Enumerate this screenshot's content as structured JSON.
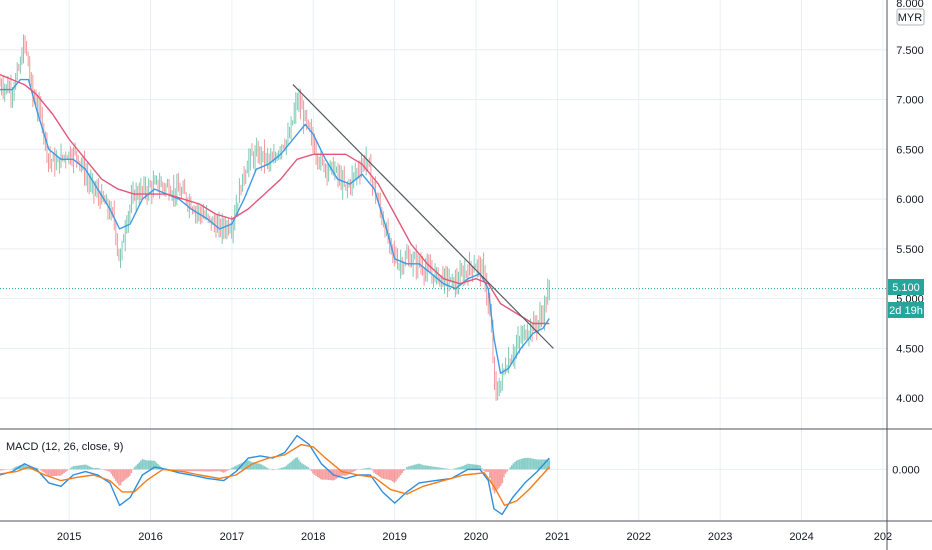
{
  "colors": {
    "grid": "#e9eef3",
    "border": "#50535e",
    "bar_up": "#7fc9b5",
    "bar_down": "#f09a9a",
    "ma_fast": "#3d9be8",
    "ma_slow": "#e2587a",
    "trendline": "#555861",
    "price_line": "#26a69a",
    "price_label_bg": "#26a69a",
    "price_label_text": "#ffffff",
    "macd_line": "#2f8ee0",
    "signal_line": "#f47c1a",
    "hist_up": "#26a69a",
    "hist_down": "#ef5350"
  },
  "price_axis": {
    "currency": "MYR",
    "top_label": "8.000",
    "current_price": "5.100",
    "countdown": "2d 19h"
  },
  "macd_panel": {
    "title": "MACD (12, 26, close, 9)"
  },
  "chart_data": [
    {
      "type": "line",
      "panel": "price",
      "title": "",
      "xlabel": "",
      "ylabel": "",
      "x_ticks": [
        "2015",
        "2016",
        "2017",
        "2018",
        "2019",
        "2020",
        "2021",
        "2022",
        "2023",
        "2024",
        "202"
      ],
      "y_ticks": [
        "4.000",
        "4.500",
        "5.000",
        "5.500",
        "6.000",
        "6.500",
        "7.000",
        "7.500"
      ],
      "ylim": [
        3.7,
        8.0
      ],
      "xlim": [
        2014.15,
        2025.05
      ],
      "grid": true,
      "last_price": 5.1,
      "price_path": [
        [
          2014.15,
          7.15
        ],
        [
          2014.3,
          7.1
        ],
        [
          2014.4,
          7.35
        ],
        [
          2014.45,
          7.6
        ],
        [
          2014.55,
          7.05
        ],
        [
          2014.65,
          6.85
        ],
        [
          2014.75,
          6.4
        ],
        [
          2014.85,
          6.35
        ],
        [
          2014.95,
          6.45
        ],
        [
          2015.1,
          6.45
        ],
        [
          2015.25,
          6.15
        ],
        [
          2015.4,
          6.0
        ],
        [
          2015.55,
          5.8
        ],
        [
          2015.62,
          5.35
        ],
        [
          2015.7,
          5.8
        ],
        [
          2015.8,
          6.05
        ],
        [
          2015.95,
          6.1
        ],
        [
          2016.1,
          6.15
        ],
        [
          2016.25,
          6.1
        ],
        [
          2016.4,
          6.05
        ],
        [
          2016.55,
          5.9
        ],
        [
          2016.7,
          5.8
        ],
        [
          2016.85,
          5.7
        ],
        [
          2017.0,
          5.75
        ],
        [
          2017.1,
          6.1
        ],
        [
          2017.2,
          6.4
        ],
        [
          2017.35,
          6.45
        ],
        [
          2017.5,
          6.35
        ],
        [
          2017.6,
          6.55
        ],
        [
          2017.7,
          6.6
        ],
        [
          2017.8,
          7.0
        ],
        [
          2017.9,
          6.8
        ],
        [
          2018.0,
          6.55
        ],
        [
          2018.1,
          6.35
        ],
        [
          2018.25,
          6.3
        ],
        [
          2018.4,
          6.1
        ],
        [
          2018.55,
          6.3
        ],
        [
          2018.65,
          6.4
        ],
        [
          2018.75,
          6.1
        ],
        [
          2018.85,
          5.8
        ],
        [
          2018.95,
          5.5
        ],
        [
          2019.05,
          5.35
        ],
        [
          2019.15,
          5.4
        ],
        [
          2019.3,
          5.35
        ],
        [
          2019.45,
          5.25
        ],
        [
          2019.6,
          5.2
        ],
        [
          2019.75,
          5.15
        ],
        [
          2019.9,
          5.3
        ],
        [
          2020.0,
          5.35
        ],
        [
          2020.1,
          5.25
        ],
        [
          2020.18,
          4.75
        ],
        [
          2020.24,
          4.0
        ],
        [
          2020.35,
          4.3
        ],
        [
          2020.45,
          4.45
        ],
        [
          2020.55,
          4.6
        ],
        [
          2020.65,
          4.7
        ],
        [
          2020.75,
          4.75
        ],
        [
          2020.82,
          4.85
        ],
        [
          2020.9,
          5.1
        ]
      ],
      "series": [
        {
          "role": "fast_ma",
          "points": [
            [
              2014.15,
              7.1
            ],
            [
              2014.3,
              7.1
            ],
            [
              2014.4,
              7.2
            ],
            [
              2014.5,
              7.2
            ],
            [
              2014.6,
              6.9
            ],
            [
              2014.75,
              6.5
            ],
            [
              2014.9,
              6.4
            ],
            [
              2015.05,
              6.4
            ],
            [
              2015.2,
              6.3
            ],
            [
              2015.35,
              6.1
            ],
            [
              2015.5,
              5.9
            ],
            [
              2015.62,
              5.7
            ],
            [
              2015.75,
              5.75
            ],
            [
              2015.9,
              6.0
            ],
            [
              2016.05,
              6.1
            ],
            [
              2016.2,
              6.05
            ],
            [
              2016.35,
              6.0
            ],
            [
              2016.5,
              5.9
            ],
            [
              2016.7,
              5.8
            ],
            [
              2016.85,
              5.7
            ],
            [
              2017.0,
              5.75
            ],
            [
              2017.15,
              6.0
            ],
            [
              2017.3,
              6.3
            ],
            [
              2017.45,
              6.35
            ],
            [
              2017.6,
              6.45
            ],
            [
              2017.75,
              6.6
            ],
            [
              2017.9,
              6.75
            ],
            [
              2018.0,
              6.65
            ],
            [
              2018.15,
              6.4
            ],
            [
              2018.3,
              6.2
            ],
            [
              2018.45,
              6.15
            ],
            [
              2018.6,
              6.25
            ],
            [
              2018.75,
              6.1
            ],
            [
              2018.9,
              5.7
            ],
            [
              2019.0,
              5.4
            ],
            [
              2019.15,
              5.35
            ],
            [
              2019.3,
              5.35
            ],
            [
              2019.45,
              5.25
            ],
            [
              2019.6,
              5.15
            ],
            [
              2019.75,
              5.1
            ],
            [
              2019.9,
              5.2
            ],
            [
              2020.05,
              5.25
            ],
            [
              2020.15,
              5.1
            ],
            [
              2020.22,
              4.6
            ],
            [
              2020.3,
              4.25
            ],
            [
              2020.4,
              4.3
            ],
            [
              2020.55,
              4.5
            ],
            [
              2020.7,
              4.65
            ],
            [
              2020.82,
              4.7
            ],
            [
              2020.9,
              4.8
            ]
          ]
        },
        {
          "role": "slow_ma",
          "points": [
            [
              2014.15,
              7.25
            ],
            [
              2014.3,
              7.2
            ],
            [
              2014.45,
              7.15
            ],
            [
              2014.6,
              7.05
            ],
            [
              2014.8,
              6.85
            ],
            [
              2015.0,
              6.6
            ],
            [
              2015.2,
              6.4
            ],
            [
              2015.4,
              6.2
            ],
            [
              2015.6,
              6.1
            ],
            [
              2015.8,
              6.05
            ],
            [
              2016.0,
              6.05
            ],
            [
              2016.2,
              6.05
            ],
            [
              2016.4,
              6.0
            ],
            [
              2016.6,
              5.95
            ],
            [
              2016.8,
              5.85
            ],
            [
              2017.0,
              5.8
            ],
            [
              2017.2,
              5.9
            ],
            [
              2017.4,
              6.05
            ],
            [
              2017.6,
              6.2
            ],
            [
              2017.8,
              6.4
            ],
            [
              2018.0,
              6.45
            ],
            [
              2018.2,
              6.45
            ],
            [
              2018.4,
              6.45
            ],
            [
              2018.6,
              6.35
            ],
            [
              2018.8,
              6.15
            ],
            [
              2019.0,
              5.85
            ],
            [
              2019.2,
              5.55
            ],
            [
              2019.4,
              5.35
            ],
            [
              2019.6,
              5.2
            ],
            [
              2019.8,
              5.15
            ],
            [
              2020.0,
              5.2
            ],
            [
              2020.15,
              5.15
            ],
            [
              2020.3,
              4.95
            ],
            [
              2020.5,
              4.85
            ],
            [
              2020.7,
              4.75
            ],
            [
              2020.9,
              4.75
            ]
          ]
        }
      ],
      "trendline": [
        [
          2017.75,
          7.15
        ],
        [
          2020.95,
          4.5
        ]
      ],
      "annotations": [
        "2d 19h"
      ]
    },
    {
      "type": "line",
      "panel": "macd",
      "title": "MACD (12, 26, close, 9)",
      "y_ticks": [
        "0.000"
      ],
      "ylim": [
        -0.45,
        0.35
      ],
      "series": [
        {
          "role": "macd",
          "points": [
            [
              2014.15,
              -0.05
            ],
            [
              2014.3,
              -0.02
            ],
            [
              2014.45,
              0.05
            ],
            [
              2014.6,
              0.0
            ],
            [
              2014.75,
              -0.12
            ],
            [
              2014.9,
              -0.15
            ],
            [
              2015.05,
              -0.05
            ],
            [
              2015.2,
              -0.02
            ],
            [
              2015.35,
              -0.05
            ],
            [
              2015.5,
              -0.12
            ],
            [
              2015.62,
              -0.32
            ],
            [
              2015.75,
              -0.25
            ],
            [
              2015.9,
              -0.05
            ],
            [
              2016.05,
              0.02
            ],
            [
              2016.2,
              0.0
            ],
            [
              2016.35,
              -0.03
            ],
            [
              2016.5,
              -0.05
            ],
            [
              2016.7,
              -0.08
            ],
            [
              2016.9,
              -0.1
            ],
            [
              2017.05,
              -0.02
            ],
            [
              2017.2,
              0.1
            ],
            [
              2017.35,
              0.12
            ],
            [
              2017.5,
              0.1
            ],
            [
              2017.65,
              0.15
            ],
            [
              2017.8,
              0.3
            ],
            [
              2017.95,
              0.22
            ],
            [
              2018.1,
              0.05
            ],
            [
              2018.25,
              -0.05
            ],
            [
              2018.4,
              -0.08
            ],
            [
              2018.55,
              -0.05
            ],
            [
              2018.7,
              -0.05
            ],
            [
              2018.85,
              -0.2
            ],
            [
              2019.0,
              -0.3
            ],
            [
              2019.15,
              -0.2
            ],
            [
              2019.3,
              -0.12
            ],
            [
              2019.5,
              -0.1
            ],
            [
              2019.7,
              -0.08
            ],
            [
              2019.9,
              0.0
            ],
            [
              2020.05,
              0.0
            ],
            [
              2020.15,
              -0.1
            ],
            [
              2020.22,
              -0.35
            ],
            [
              2020.32,
              -0.4
            ],
            [
              2020.45,
              -0.25
            ],
            [
              2020.6,
              -0.12
            ],
            [
              2020.75,
              -0.02
            ],
            [
              2020.9,
              0.1
            ]
          ]
        },
        {
          "role": "signal",
          "points": [
            [
              2014.15,
              -0.04
            ],
            [
              2014.35,
              -0.02
            ],
            [
              2014.5,
              0.02
            ],
            [
              2014.7,
              -0.05
            ],
            [
              2014.9,
              -0.1
            ],
            [
              2015.1,
              -0.07
            ],
            [
              2015.3,
              -0.05
            ],
            [
              2015.5,
              -0.1
            ],
            [
              2015.65,
              -0.2
            ],
            [
              2015.8,
              -0.2
            ],
            [
              2015.95,
              -0.1
            ],
            [
              2016.15,
              0.0
            ],
            [
              2016.4,
              -0.02
            ],
            [
              2016.6,
              -0.05
            ],
            [
              2016.85,
              -0.08
            ],
            [
              2017.05,
              -0.05
            ],
            [
              2017.25,
              0.05
            ],
            [
              2017.45,
              0.1
            ],
            [
              2017.65,
              0.13
            ],
            [
              2017.85,
              0.22
            ],
            [
              2018.0,
              0.2
            ],
            [
              2018.15,
              0.1
            ],
            [
              2018.35,
              -0.02
            ],
            [
              2018.55,
              -0.05
            ],
            [
              2018.75,
              -0.07
            ],
            [
              2018.95,
              -0.18
            ],
            [
              2019.15,
              -0.22
            ],
            [
              2019.35,
              -0.15
            ],
            [
              2019.6,
              -0.1
            ],
            [
              2019.85,
              -0.05
            ],
            [
              2020.1,
              -0.03
            ],
            [
              2020.22,
              -0.15
            ],
            [
              2020.35,
              -0.32
            ],
            [
              2020.5,
              -0.28
            ],
            [
              2020.65,
              -0.18
            ],
            [
              2020.8,
              -0.06
            ],
            [
              2020.9,
              0.02
            ]
          ]
        }
      ]
    }
  ]
}
